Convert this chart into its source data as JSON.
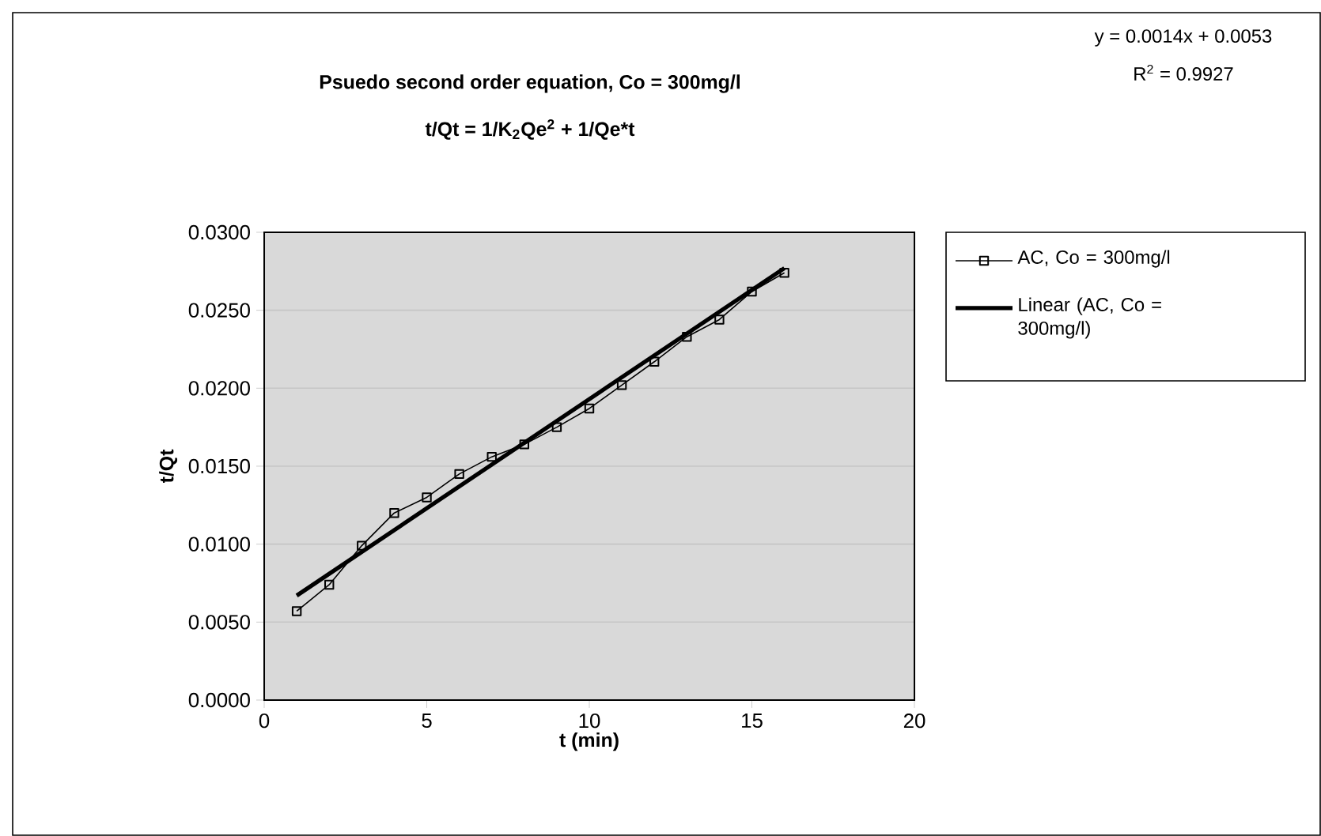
{
  "chart_data": {
    "type": "line",
    "title": "Psuedo second order equation, Co = 300mg/l",
    "subtitle": "t/Qt = 1/K$_{2}$Qe$^{2}$ + 1/Qe*t",
    "xlabel": "t (min)",
    "ylabel": "t/Qt",
    "annotations": [
      "y = 0.0014x + 0.0053",
      "R$^{2}$ = 0.9927"
    ],
    "x": [
      1,
      2,
      3,
      4,
      5,
      6,
      7,
      8,
      9,
      10,
      11,
      12,
      13,
      14,
      15,
      16
    ],
    "series": [
      {
        "name": "AC, Co = 300mg/l",
        "color": "#000000",
        "marker": "square",
        "line_style": "solid",
        "values": [
          0.0057,
          0.0074,
          0.0099,
          0.012,
          0.013,
          0.0145,
          0.0156,
          0.0164,
          0.0175,
          0.0187,
          0.0202,
          0.0217,
          0.0233,
          0.0244,
          0.0262,
          0.0274
        ]
      },
      {
        "name": "Linear (AC, Co = 300mg/l)",
        "color": "#000000",
        "marker": "none",
        "line_style": "solid",
        "x": [
          1,
          16
        ],
        "values": [
          0.0067,
          0.0277
        ]
      }
    ],
    "xlim": [
      0,
      20
    ],
    "xticks": [
      0,
      5,
      10,
      15,
      20
    ],
    "ylim": [
      0,
      0.03
    ],
    "yticks": [
      {
        "value": 0,
        "label": "0.0000"
      },
      {
        "value": 0.005,
        "label": "0.0050"
      },
      {
        "value": 0.01,
        "label": "0.0100"
      },
      {
        "value": 0.015,
        "label": "0.0150"
      },
      {
        "value": 0.02,
        "label": "0.0200"
      },
      {
        "value": 0.025,
        "label": "0.0250"
      },
      {
        "value": 0.03,
        "label": "0.0300"
      }
    ],
    "grid": "y",
    "legend": "right"
  }
}
